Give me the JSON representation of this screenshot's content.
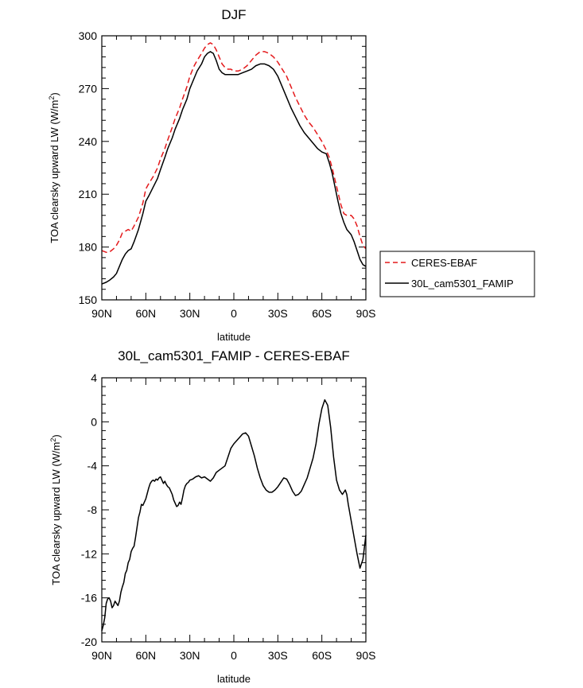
{
  "chart_data": [
    {
      "type": "line",
      "title": "DJF",
      "xlabel": "latitude",
      "ylabel_main": "TOA clearsky upward LW (W/m",
      "ylabel_sup": "2",
      "ylabel_tail": ")",
      "xlim": [
        -90,
        90
      ],
      "ylim": [
        150,
        300
      ],
      "x_ticks": [
        -90,
        -60,
        -30,
        0,
        30,
        60,
        90
      ],
      "x_tick_labels": [
        "90N",
        "60N",
        "30N",
        "0",
        "30S",
        "60S",
        "90S"
      ],
      "y_ticks": [
        150,
        180,
        210,
        240,
        270,
        300
      ],
      "y_tick_labels": [
        "150",
        "180",
        "210",
        "240",
        "270",
        "300"
      ],
      "legend": {
        "placement": "right"
      },
      "series": [
        {
          "name": "CERES-EBAF",
          "color": "#e41a1c",
          "dash": "dashed",
          "x": [
            -90,
            -87,
            -85,
            -82,
            -80,
            -78,
            -76,
            -74,
            -72,
            -70,
            -68,
            -65,
            -62,
            -60,
            -58,
            -55,
            -52,
            -50,
            -47,
            -45,
            -42,
            -40,
            -37,
            -35,
            -32,
            -30,
            -27,
            -25,
            -22,
            -20,
            -18,
            -16,
            -14,
            -12,
            -10,
            -8,
            -6,
            -4,
            -2,
            0,
            3,
            6,
            9,
            12,
            15,
            18,
            21,
            24,
            27,
            30,
            33,
            36,
            39,
            42,
            45,
            48,
            51,
            54,
            57,
            60,
            63,
            65,
            67,
            69,
            71,
            73,
            75,
            77,
            79,
            80,
            82,
            84,
            86,
            88,
            90
          ],
          "y": [
            178,
            177,
            177,
            179,
            181,
            184,
            188,
            189,
            190,
            189,
            192,
            197,
            205,
            213,
            216,
            220,
            225,
            230,
            236,
            241,
            248,
            253,
            259,
            264,
            271,
            277,
            283,
            286,
            290,
            293,
            295,
            296,
            295,
            292,
            288,
            284,
            282,
            281,
            281,
            280,
            280,
            281,
            283,
            286,
            289,
            291,
            291,
            290,
            288,
            285,
            281,
            277,
            271,
            265,
            260,
            255,
            251,
            248,
            244,
            240,
            235,
            231,
            225,
            218,
            211,
            204,
            199,
            198,
            198,
            198,
            196,
            192,
            186,
            181,
            179
          ]
        },
        {
          "name": "30L_cam5301_FAMIP",
          "color": "#000000",
          "dash": "solid",
          "x": [
            -90,
            -87,
            -85,
            -82,
            -80,
            -78,
            -76,
            -74,
            -72,
            -70,
            -68,
            -65,
            -62,
            -60,
            -58,
            -55,
            -52,
            -50,
            -47,
            -45,
            -42,
            -40,
            -37,
            -35,
            -32,
            -30,
            -27,
            -25,
            -22,
            -20,
            -18,
            -16,
            -14,
            -12,
            -10,
            -8,
            -6,
            -4,
            -2,
            0,
            3,
            6,
            9,
            12,
            15,
            18,
            21,
            24,
            27,
            30,
            33,
            36,
            39,
            42,
            45,
            48,
            51,
            54,
            57,
            60,
            63,
            65,
            67,
            69,
            71,
            73,
            75,
            77,
            79,
            80,
            82,
            84,
            86,
            88,
            90
          ],
          "y": [
            159,
            160,
            161,
            163,
            165,
            169,
            173,
            176,
            178,
            179,
            183,
            190,
            199,
            206,
            209,
            214,
            219,
            224,
            231,
            236,
            242,
            247,
            253,
            258,
            264,
            270,
            276,
            280,
            284,
            288,
            290,
            291,
            290,
            286,
            281,
            279,
            278,
            278,
            278,
            278,
            278,
            279,
            280,
            281,
            283,
            284,
            284,
            283,
            281,
            277,
            271,
            265,
            259,
            254,
            249,
            245,
            242,
            239,
            236,
            234,
            233,
            228,
            222,
            214,
            206,
            199,
            194,
            190,
            188,
            187,
            183,
            178,
            173,
            170,
            169
          ]
        }
      ]
    },
    {
      "type": "line",
      "title": "30L_cam5301_FAMIP - CERES-EBAF",
      "xlabel": "latitude",
      "ylabel_main": "TOA clearsky upward LW (W/m",
      "ylabel_sup": "2",
      "ylabel_tail": ")",
      "xlim": [
        -90,
        90
      ],
      "ylim": [
        -20,
        4
      ],
      "x_ticks": [
        -90,
        -60,
        -30,
        0,
        30,
        60,
        90
      ],
      "x_tick_labels": [
        "90N",
        "60N",
        "30N",
        "0",
        "30S",
        "60S",
        "90S"
      ],
      "y_ticks": [
        -20,
        -16,
        -12,
        -8,
        -4,
        0,
        4
      ],
      "y_tick_labels": [
        "-20",
        "-16",
        "-12",
        "-8",
        "-4",
        "0",
        "4"
      ],
      "series": [
        {
          "color": "#000000",
          "dash": "solid",
          "x": [
            -90,
            -89,
            -88,
            -87,
            -86,
            -85,
            -84,
            -83,
            -82,
            -81,
            -80,
            -79,
            -78,
            -77,
            -76,
            -75,
            -74,
            -73,
            -72,
            -71,
            -70,
            -69,
            -68,
            -67,
            -66,
            -65,
            -64,
            -63,
            -62,
            -61,
            -60,
            -59,
            -58,
            -57,
            -56,
            -55,
            -54,
            -53,
            -52,
            -51,
            -50,
            -49,
            -48,
            -47,
            -46,
            -45,
            -44,
            -43,
            -42,
            -41,
            -40,
            -39,
            -38,
            -37,
            -36,
            -35,
            -34,
            -33,
            -32,
            -31,
            -30,
            -28,
            -26,
            -24,
            -22,
            -20,
            -18,
            -16,
            -14,
            -12,
            -10,
            -8,
            -6,
            -4,
            -2,
            0,
            2,
            4,
            6,
            8,
            10,
            12,
            14,
            16,
            18,
            20,
            22,
            24,
            26,
            28,
            30,
            32,
            34,
            36,
            38,
            40,
            42,
            44,
            46,
            48,
            50,
            52,
            54,
            56,
            58,
            60,
            62,
            64,
            66,
            68,
            70,
            72,
            74,
            76,
            77,
            78,
            80,
            82,
            84,
            86,
            88,
            90
          ],
          "y": [
            -19,
            -18.5,
            -17.8,
            -16.5,
            -16.1,
            -16.0,
            -16.3,
            -16.9,
            -16.7,
            -16.3,
            -16.5,
            -16.7,
            -16.3,
            -15.5,
            -15.0,
            -14.6,
            -13.8,
            -13.5,
            -12.8,
            -12.5,
            -11.8,
            -11.5,
            -11.3,
            -10.5,
            -9.6,
            -8.7,
            -8.2,
            -7.5,
            -7.6,
            -7.3,
            -7.0,
            -6.5,
            -6.0,
            -5.6,
            -5.4,
            -5.3,
            -5.4,
            -5.2,
            -5.3,
            -5.1,
            -5.0,
            -5.3,
            -5.6,
            -5.4,
            -5.7,
            -5.9,
            -6.0,
            -6.3,
            -6.6,
            -7.1,
            -7.4,
            -7.7,
            -7.6,
            -7.3,
            -7.5,
            -6.9,
            -6.2,
            -5.8,
            -5.6,
            -5.5,
            -5.3,
            -5.2,
            -5.0,
            -4.9,
            -5.1,
            -5.0,
            -5.2,
            -5.4,
            -5.1,
            -4.6,
            -4.4,
            -4.2,
            -4.0,
            -3.2,
            -2.4,
            -2.0,
            -1.7,
            -1.4,
            -1.1,
            -1.0,
            -1.3,
            -2.2,
            -3.1,
            -4.2,
            -5.1,
            -5.8,
            -6.2,
            -6.4,
            -6.4,
            -6.2,
            -5.9,
            -5.5,
            -5.1,
            -5.2,
            -5.7,
            -6.3,
            -6.7,
            -6.6,
            -6.3,
            -5.7,
            -5.1,
            -4.2,
            -3.3,
            -2.0,
            -0.2,
            1.2,
            2.0,
            1.5,
            -0.5,
            -3.2,
            -5.3,
            -6.2,
            -6.6,
            -6.2,
            -6.6,
            -7.5,
            -9.0,
            -10.5,
            -12.0,
            -13.3,
            -12.5,
            -10.3
          ]
        }
      ]
    }
  ]
}
